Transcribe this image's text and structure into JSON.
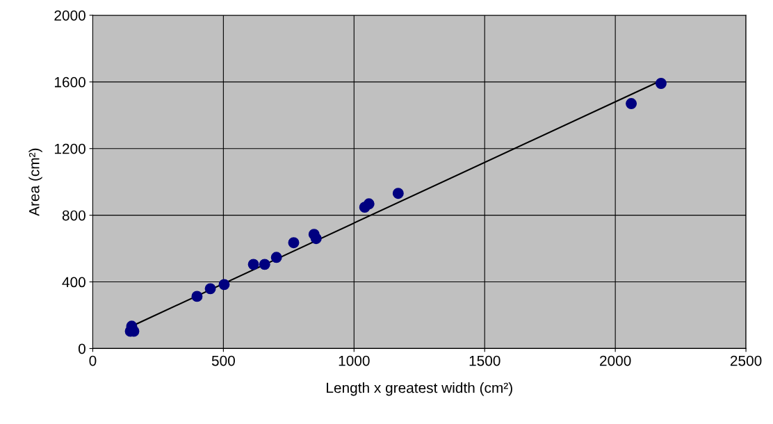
{
  "chart_data": {
    "type": "scatter",
    "xlabel": "Length x greatest width (cm²)",
    "ylabel": "Area (cm²)",
    "xlim": [
      0,
      2500
    ],
    "xticks": [
      0,
      500,
      1000,
      1500,
      2000,
      2500
    ],
    "ylim": [
      0,
      2000
    ],
    "yticks": [
      0,
      400,
      800,
      1200,
      1600,
      2000
    ],
    "grid": true,
    "legend": false,
    "series": [
      {
        "marker": "circle",
        "color": "#000080",
        "x": [
          144,
          157,
          149,
          399,
          450,
          503,
          615,
          658,
          703,
          769,
          847,
          855,
          1041,
          1057,
          1169,
          2061,
          2175
        ],
        "values": [
          104,
          104,
          134,
          313,
          359,
          384,
          505,
          505,
          547,
          635,
          685,
          660,
          848,
          868,
          931,
          1470,
          1591
        ]
      },
      {
        "type": "line",
        "marker": "none",
        "color": "#000000",
        "x": [
          149,
          2175
        ],
        "values": [
          134,
          1608
        ]
      }
    ]
  }
}
